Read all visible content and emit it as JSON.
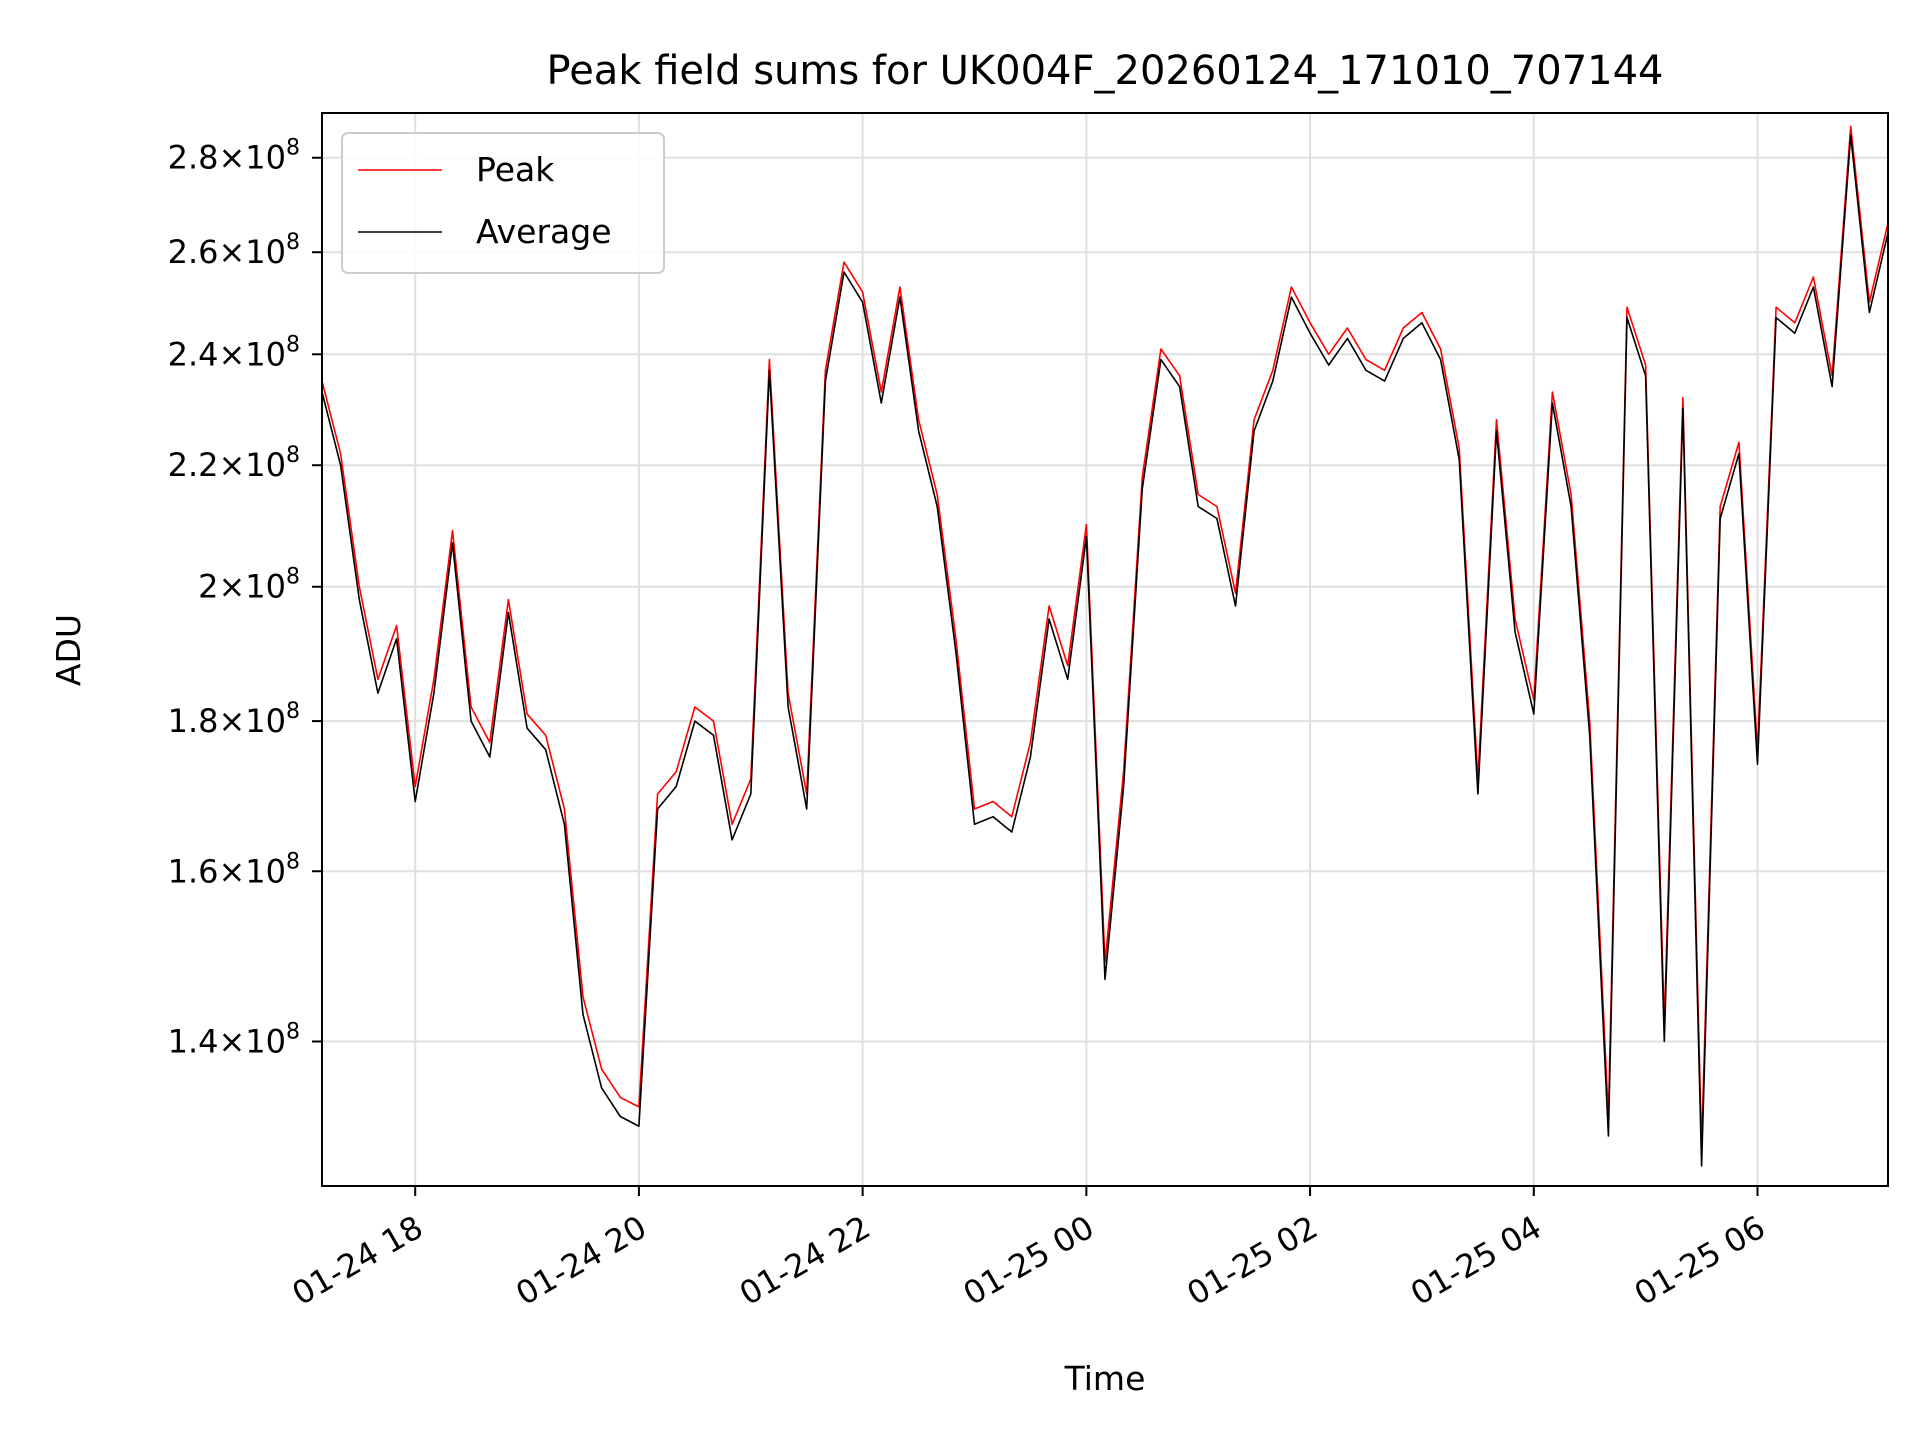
{
  "chart_data": {
    "type": "line",
    "title": "Peak field sums for UK004F_20260124_171010_707144",
    "xlabel": "Time",
    "ylabel": "ADU",
    "yscale": "log",
    "ylim": [
      125000000,
      290000000
    ],
    "xlim": [
      "01-24 17:10",
      "01-25 07:10"
    ],
    "grid": true,
    "legend_position": "top-left",
    "x_ticks": [
      "01-24 18:00",
      "01-24 20:00",
      "01-24 22:00",
      "01-25 00:00",
      "01-25 02:00",
      "01-25 04:00",
      "01-25 06:00"
    ],
    "x_tick_labels": [
      "01-24 18",
      "01-24 20",
      "01-24 22",
      "01-25 00",
      "01-25 02",
      "01-25 04",
      "01-25 06"
    ],
    "y_ticks": [
      {
        "value": 140000000,
        "mant": "1.4",
        "exp": "8"
      },
      {
        "value": 160000000,
        "mant": "1.6",
        "exp": "8"
      },
      {
        "value": 180000000,
        "mant": "1.8",
        "exp": "8"
      },
      {
        "value": 200000000,
        "mant": "2",
        "exp": "8"
      },
      {
        "value": 220000000,
        "mant": "2.2",
        "exp": "8"
      },
      {
        "value": 240000000,
        "mant": "2.4",
        "exp": "8"
      },
      {
        "value": 260000000,
        "mant": "2.6",
        "exp": "8"
      },
      {
        "value": 280000000,
        "mant": "2.8",
        "exp": "8"
      }
    ],
    "x": [
      "01-24 17:10",
      "01-24 17:20",
      "01-24 17:30",
      "01-24 17:40",
      "01-24 17:50",
      "01-24 18:00",
      "01-24 18:10",
      "01-24 18:20",
      "01-24 18:30",
      "01-24 18:40",
      "01-24 18:50",
      "01-24 19:00",
      "01-24 19:10",
      "01-24 19:20",
      "01-24 19:30",
      "01-24 19:40",
      "01-24 19:50",
      "01-24 20:00",
      "01-24 20:10",
      "01-24 20:20",
      "01-24 20:30",
      "01-24 20:40",
      "01-24 20:50",
      "01-24 21:00",
      "01-24 21:10",
      "01-24 21:20",
      "01-24 21:30",
      "01-24 21:40",
      "01-24 21:50",
      "01-24 22:00",
      "01-24 22:10",
      "01-24 22:20",
      "01-24 22:30",
      "01-24 22:40",
      "01-24 22:50",
      "01-24 23:00",
      "01-24 23:10",
      "01-24 23:20",
      "01-24 23:30",
      "01-24 23:40",
      "01-24 23:50",
      "01-25 00:00",
      "01-25 00:10",
      "01-25 00:20",
      "01-25 00:30",
      "01-25 00:40",
      "01-25 00:50",
      "01-25 01:00",
      "01-25 01:10",
      "01-25 01:20",
      "01-25 01:30",
      "01-25 01:40",
      "01-25 01:50",
      "01-25 02:00",
      "01-25 02:10",
      "01-25 02:20",
      "01-25 02:30",
      "01-25 02:40",
      "01-25 02:50",
      "01-25 03:00",
      "01-25 03:10",
      "01-25 03:20",
      "01-25 03:30",
      "01-25 03:40",
      "01-25 03:50",
      "01-25 04:00",
      "01-25 04:10",
      "01-25 04:20",
      "01-25 04:30",
      "01-25 04:40",
      "01-25 04:50",
      "01-25 05:00",
      "01-25 05:10",
      "01-25 05:20",
      "01-25 05:30",
      "01-25 05:40",
      "01-25 05:50",
      "01-25 06:00",
      "01-25 06:10",
      "01-25 06:20",
      "01-25 06:30",
      "01-25 06:40",
      "01-25 06:50",
      "01-25 07:00",
      "01-25 07:10"
    ],
    "series": [
      {
        "name": "Peak",
        "color": "#ff0000",
        "values": [
          235000000,
          222000000,
          200000000,
          186000000,
          194000000,
          171000000,
          186000000,
          209000000,
          182000000,
          177000000,
          198000000,
          181000000,
          178000000,
          168000000,
          145000000,
          137000000,
          134000000,
          133000000,
          170000000,
          173000000,
          182000000,
          180000000,
          166000000,
          172000000,
          239000000,
          184000000,
          170000000,
          237000000,
          258000000,
          252000000,
          233000000,
          253000000,
          228000000,
          215000000,
          192000000,
          168000000,
          169000000,
          167000000,
          177000000,
          197000000,
          188000000,
          210000000,
          149000000,
          173000000,
          218000000,
          241000000,
          236000000,
          215000000,
          213000000,
          199000000,
          228000000,
          237000000,
          253000000,
          246000000,
          240000000,
          245000000,
          239000000,
          237000000,
          245000000,
          248000000,
          241000000,
          223000000,
          172000000,
          228000000,
          195000000,
          183000000,
          233000000,
          215000000,
          180000000,
          132000000,
          249000000,
          238000000,
          142000000,
          232000000,
          129000000,
          213000000,
          224000000,
          176000000,
          249000000,
          246000000,
          255000000,
          236000000,
          287000000,
          250000000,
          266000000
        ]
      },
      {
        "name": "Average",
        "color": "#000000",
        "values": [
          233000000,
          220000000,
          198000000,
          184000000,
          192000000,
          169000000,
          184000000,
          207000000,
          180000000,
          175000000,
          196000000,
          179000000,
          176000000,
          166000000,
          143000000,
          135000000,
          132000000,
          131000000,
          168000000,
          171000000,
          180000000,
          178000000,
          164000000,
          170000000,
          237000000,
          182000000,
          168000000,
          235000000,
          256000000,
          250000000,
          231000000,
          251000000,
          226000000,
          213000000,
          190000000,
          166000000,
          167000000,
          165000000,
          175000000,
          195000000,
          186000000,
          208000000,
          147000000,
          171000000,
          216000000,
          239000000,
          234000000,
          213000000,
          211000000,
          197000000,
          226000000,
          235000000,
          251000000,
          244000000,
          238000000,
          243000000,
          237000000,
          235000000,
          243000000,
          246000000,
          239000000,
          221000000,
          170000000,
          226000000,
          193000000,
          181000000,
          231000000,
          213000000,
          178000000,
          130000000,
          247000000,
          236000000,
          140000000,
          230000000,
          127000000,
          211000000,
          222000000,
          174000000,
          247000000,
          244000000,
          253000000,
          234000000,
          285000000,
          248000000,
          264000000
        ]
      }
    ]
  }
}
